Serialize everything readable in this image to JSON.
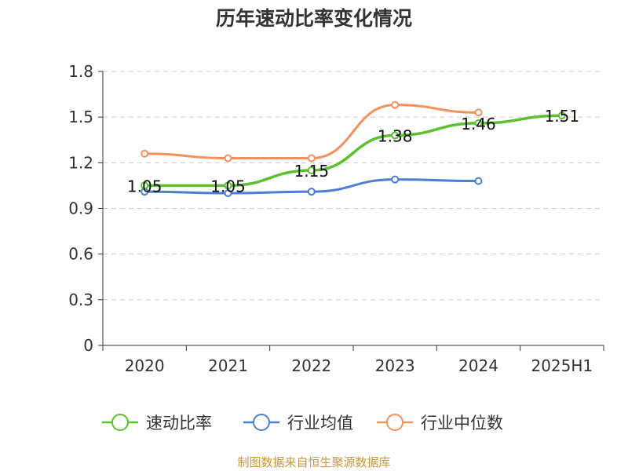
{
  "chart_data": {
    "type": "line",
    "title": "历年速动比率变化情况",
    "categories": [
      "2020",
      "2021",
      "2022",
      "2023",
      "2024",
      "2025H1"
    ],
    "y_ticks": [
      "0",
      "0.3",
      "0.6",
      "0.9",
      "1.2",
      "1.5",
      "1.8"
    ],
    "ylim": [
      0,
      1.8
    ],
    "grid": true,
    "legend_position": "bottom",
    "series": [
      {
        "name": "速动比率",
        "color": "#5cc02f",
        "values": [
          1.05,
          1.05,
          1.15,
          1.38,
          1.46,
          1.51
        ],
        "labels": [
          "1.05",
          "1.05",
          "1.15",
          "1.38",
          "1.46",
          "1.51"
        ]
      },
      {
        "name": "行业均值",
        "color": "#4b7fd6",
        "values": [
          1.01,
          1.0,
          1.01,
          1.09,
          1.08,
          null
        ]
      },
      {
        "name": "行业中位数",
        "color": "#f5915a",
        "values": [
          1.26,
          1.23,
          1.23,
          1.58,
          1.53,
          null
        ]
      }
    ]
  },
  "footer": "制图数据来自恒生聚源数据库"
}
